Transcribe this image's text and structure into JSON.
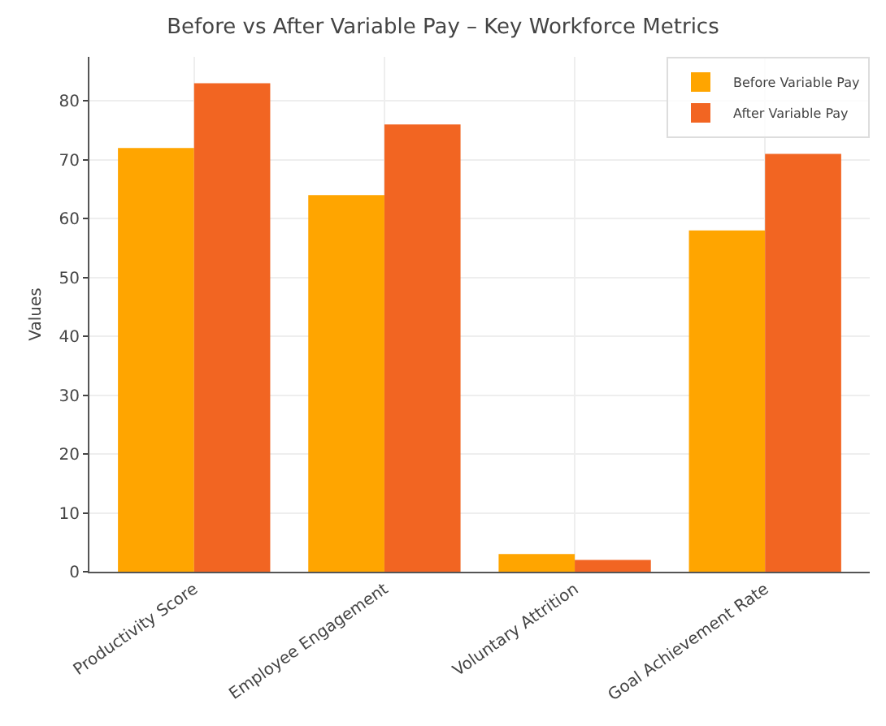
{
  "chart_data": {
    "type": "bar",
    "title": "Before vs After Variable Pay – Key Workforce Metrics",
    "ylabel": "Values",
    "categories": [
      "Productivity Score",
      "Employee Engagement",
      "Voluntary Attrition",
      "Goal Achievement Rate"
    ],
    "series": [
      {
        "name": "Before Variable Pay",
        "color": "#ffa500",
        "values": [
          72,
          64,
          3,
          58
        ]
      },
      {
        "name": "After Variable Pay",
        "color": "#f26522",
        "values": [
          83,
          76,
          2,
          71
        ]
      }
    ],
    "ylim": [
      0,
      87.5
    ],
    "yticks": [
      0,
      10,
      20,
      30,
      40,
      50,
      60,
      70,
      80
    ],
    "grid": true,
    "legend": "top right"
  }
}
